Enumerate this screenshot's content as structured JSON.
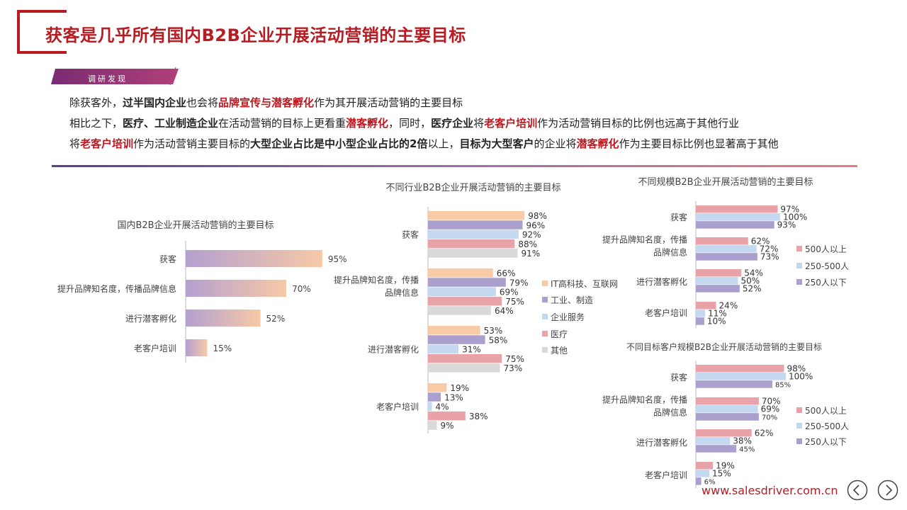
{
  "page": {
    "title": "获客是几乎所有国内B2B企业开展活动营销的主要目标",
    "tag": "调研发现",
    "findings": [
      [
        {
          "t": "除获客外，",
          "s": "n"
        },
        {
          "t": "过半国内企业",
          "s": "b"
        },
        {
          "t": "也会将",
          "s": "n"
        },
        {
          "t": "品牌宣传与潜客孵化",
          "s": "r"
        },
        {
          "t": "作为其开展活动营销的主要目标",
          "s": "n"
        }
      ],
      [
        {
          "t": "相比之下，",
          "s": "n"
        },
        {
          "t": "医疗、工业制造企业",
          "s": "b"
        },
        {
          "t": "在活动营销的目标上更看重",
          "s": "n"
        },
        {
          "t": "潜客孵化",
          "s": "r"
        },
        {
          "t": "，同时，",
          "s": "n"
        },
        {
          "t": "医疗企业",
          "s": "b"
        },
        {
          "t": "将",
          "s": "n"
        },
        {
          "t": "老客户培训",
          "s": "r"
        },
        {
          "t": "作为活动营销目标的比例也远高于其他行业",
          "s": "n"
        }
      ],
      [
        {
          "t": "将",
          "s": "n"
        },
        {
          "t": "老客户培训",
          "s": "r"
        },
        {
          "t": "作为活动营销主要目标的",
          "s": "n"
        },
        {
          "t": "大型企业占比是中小型企业占比的2倍",
          "s": "b"
        },
        {
          "t": "以上，",
          "s": "n"
        },
        {
          "t": "目标为大型客户",
          "s": "b"
        },
        {
          "t": "的企业将",
          "s": "n"
        },
        {
          "t": "潜客孵化",
          "s": "r"
        },
        {
          "t": "作为主要目标比例也显著高于其他",
          "s": "n"
        }
      ]
    ],
    "footer_url": "www.salesdriver.com.cn",
    "colors": {
      "accent": "#b81c22"
    }
  },
  "chart_data": [
    {
      "type": "bar",
      "orientation": "horizontal",
      "title": "国内B2B企业开展活动营销的主要目标",
      "categories": [
        "获客",
        "提升品牌知名度，传播品牌信息",
        "进行潜客孵化",
        "老客户培训"
      ],
      "series": [
        {
          "values": [
            95,
            70,
            52,
            15
          ]
        }
      ],
      "unit": "%",
      "colors": {
        "gradient_start": "#b4a0d0",
        "gradient_end": "#f7c9a6"
      }
    },
    {
      "type": "bar",
      "orientation": "horizontal",
      "title": "不同行业B2B企业开展活动营销的主要目标",
      "categories": [
        "获客",
        "提升品牌知名度，传播品牌信息",
        "进行潜客孵化",
        "老客户培训"
      ],
      "series": [
        {
          "name": "IT高科技、互联网",
          "color": "#f8cba6",
          "values": [
            98,
            66,
            53,
            19
          ]
        },
        {
          "name": "工业、制造",
          "color": "#ab9fce",
          "values": [
            96,
            79,
            58,
            13
          ]
        },
        {
          "name": "企业服务",
          "color": "#c4d8ef",
          "values": [
            92,
            69,
            31,
            4
          ]
        },
        {
          "name": "医疗",
          "color": "#e9a3a8",
          "values": [
            88,
            75,
            75,
            38
          ]
        },
        {
          "name": "其他",
          "color": "#d9d9d9",
          "values": [
            91,
            64,
            73,
            9
          ]
        }
      ],
      "unit": "%",
      "legend": "right"
    },
    {
      "type": "bar",
      "orientation": "horizontal",
      "title": "不同规模B2B企业开展活动营销的主要目标",
      "categories": [
        "获客",
        "提升品牌知名度，传播品牌信息",
        "进行潜客孵化",
        "老客户培训"
      ],
      "series": [
        {
          "name": "500人以上",
          "color": "#e9a3a8",
          "values": [
            97,
            62,
            54,
            24
          ]
        },
        {
          "name": "250-500人",
          "color": "#c4d8ef",
          "values": [
            100,
            72,
            50,
            11
          ]
        },
        {
          "name": "250人以下",
          "color": "#ab9fce",
          "values": [
            93,
            73,
            52,
            10
          ]
        }
      ],
      "unit": "%",
      "legend": "right"
    },
    {
      "type": "bar",
      "orientation": "horizontal",
      "title": "不同目标客户规模B2B企业开展活动营销的主要目标",
      "categories": [
        "获客",
        "提升品牌知名度，传播品牌信息",
        "进行潜客孵化",
        "老客户培训"
      ],
      "series": [
        {
          "name": "500人以上",
          "color": "#e9a3a8",
          "values": [
            98,
            70,
            62,
            19
          ]
        },
        {
          "name": "250-500人",
          "color": "#c4d8ef",
          "values": [
            100,
            69,
            38,
            15
          ]
        },
        {
          "name": "250人以下",
          "color": "#ab9fce",
          "values": [
            85,
            70,
            45,
            6
          ]
        }
      ],
      "unit": "%",
      "legend": "right"
    }
  ]
}
